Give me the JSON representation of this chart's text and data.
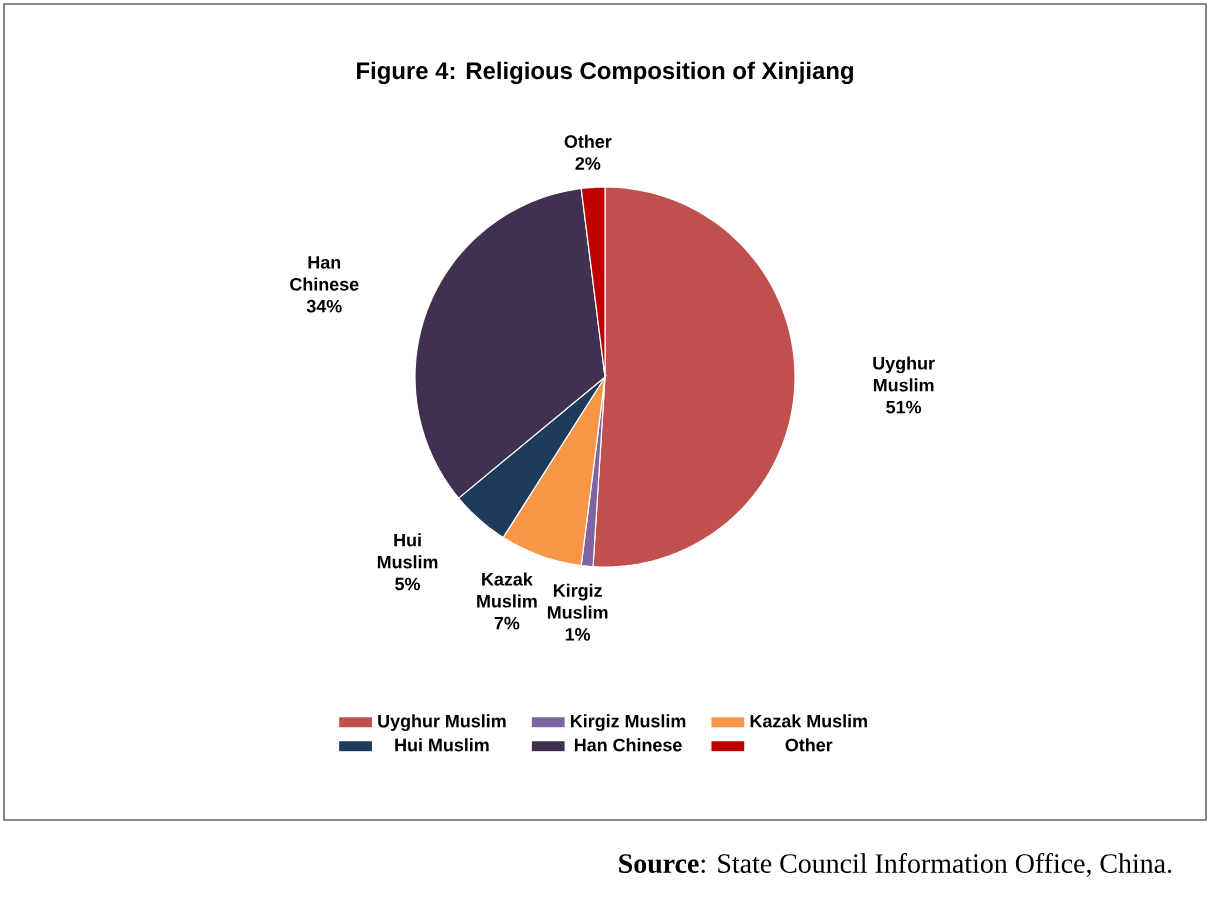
{
  "chart_data": {
    "type": "pie",
    "title": "Figure 4: Religious Composition of Xinjiang",
    "categories": [
      "Uyghur Muslim",
      "Kirgiz Muslim",
      "Kazak Muslim",
      "Hui Muslim",
      "Han Chinese",
      "Other"
    ],
    "values": [
      51,
      1,
      7,
      5,
      34,
      2
    ],
    "value_labels": [
      "51%",
      "1%",
      "7%",
      "5%",
      "34%",
      "2%"
    ],
    "colors": [
      "#c0504d",
      "#8064a2",
      "#f79646",
      "#1f3b5c",
      "#403152",
      "#c00000"
    ],
    "legend": "bottom",
    "annotations": [
      "**Source**: State Council Information Office, China."
    ]
  }
}
